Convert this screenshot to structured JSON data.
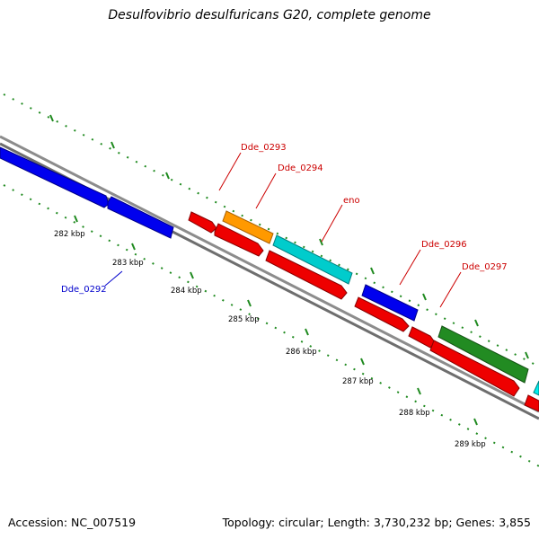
{
  "title": "Desulfovibrio desulfuricans G20, complete genome",
  "footer": {
    "accession": "Accession: NC_007519",
    "summary": "Topology: circular; Length: 3,730,232 bp; Genes: 3,855"
  },
  "colors": {
    "backbone": "#8c8c8c",
    "tick": "#1f8a1f",
    "label_forward": "#cc0000",
    "label_reverse": "#0000cc",
    "red": "#ee0000",
    "blue": "#0000ee",
    "orange": "#ff9900",
    "cyan": "#00cccc",
    "green": "#228b22"
  },
  "scale": {
    "ticks": [
      {
        "label": "282 kbp"
      },
      {
        "label": "283 kbp"
      },
      {
        "label": "284 kbp"
      },
      {
        "label": "285 kbp"
      },
      {
        "label": "286 kbp"
      },
      {
        "label": "287 kbp"
      },
      {
        "label": "288 kbp"
      },
      {
        "label": "289 kbp"
      }
    ]
  },
  "gene_labels": [
    {
      "text": "Dde_0292",
      "strand": "reverse"
    },
    {
      "text": "Dde_0293",
      "strand": "forward"
    },
    {
      "text": "Dde_0294",
      "strand": "forward"
    },
    {
      "text": "eno",
      "strand": "forward"
    },
    {
      "text": "Dde_0296",
      "strand": "forward"
    },
    {
      "text": "Dde_0297",
      "strand": "forward"
    }
  ]
}
